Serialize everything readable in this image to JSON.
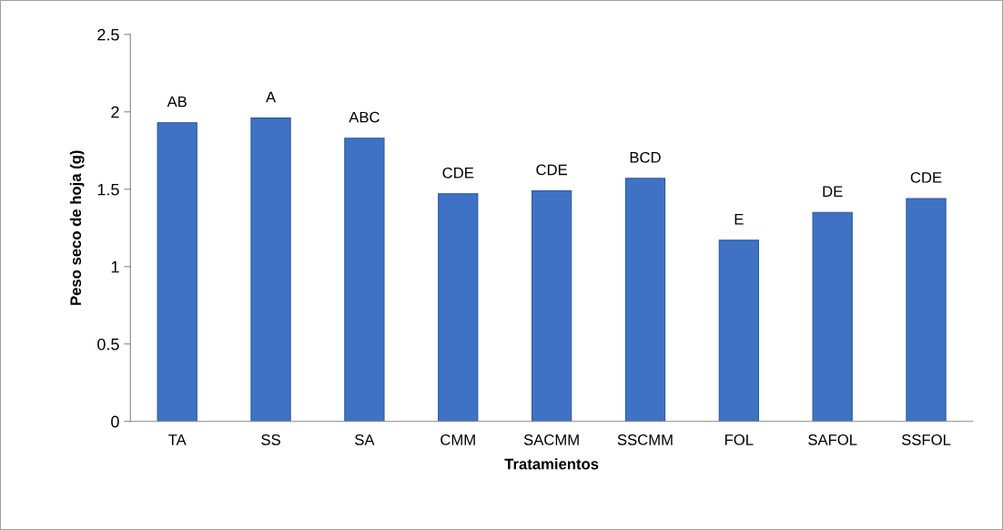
{
  "chart_data": {
    "type": "bar",
    "xlabel": "Tratamientos",
    "ylabel": "Peso seco de hoja (g)",
    "categories": [
      "TA",
      "SS",
      "SA",
      "CMM",
      "SACMM",
      "SSCMM",
      "FOL",
      "SAFOL",
      "SSFOL"
    ],
    "values": [
      1.93,
      1.96,
      1.83,
      1.47,
      1.49,
      1.57,
      1.17,
      1.35,
      1.44
    ],
    "color": "#3f72c4",
    "ylim": [
      0,
      2.5
    ],
    "yticks": [
      0,
      0.5,
      1,
      1.5,
      2,
      2.5
    ],
    "grid": false,
    "legend": false,
    "annotations": [
      {
        "text": "AB",
        "x": "TA",
        "y": 1.93
      },
      {
        "text": "A",
        "x": "SS",
        "y": 1.96
      },
      {
        "text": "ABC",
        "x": "SA",
        "y": 1.83
      },
      {
        "text": "CDE",
        "x": "CMM",
        "y": 1.47
      },
      {
        "text": "CDE",
        "x": "SACMM",
        "y": 1.49
      },
      {
        "text": "BCD",
        "x": "SSCMM",
        "y": 1.57
      },
      {
        "text": "E",
        "x": "FOL",
        "y": 1.17
      },
      {
        "text": "DE",
        "x": "SAFOL",
        "y": 1.35
      },
      {
        "text": "CDE",
        "x": "SSFOL",
        "y": 1.44
      }
    ]
  }
}
